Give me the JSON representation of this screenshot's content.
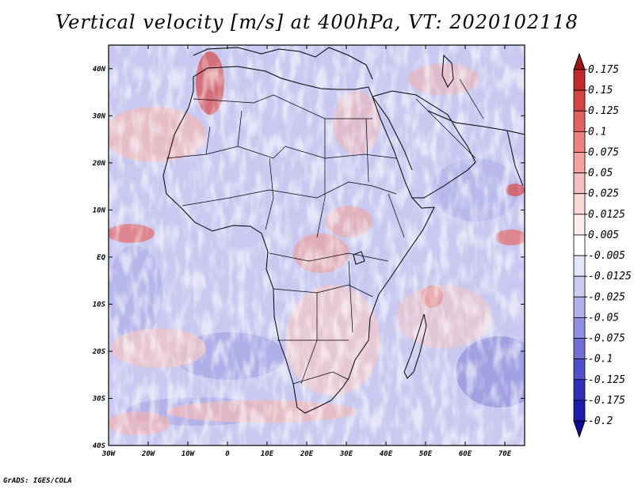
{
  "title": "Vertical velocity [m/s] at 400hPa, VT: 2020102118",
  "footer": "GrADS: IGES/COLA",
  "map": {
    "lon_range": [
      -30,
      75
    ],
    "lat_range": [
      -40,
      45
    ],
    "x_ticks": [
      {
        "value": -30,
        "label": "30W"
      },
      {
        "value": -20,
        "label": "20W"
      },
      {
        "value": -10,
        "label": "10W"
      },
      {
        "value": 0,
        "label": "0"
      },
      {
        "value": 10,
        "label": "10E"
      },
      {
        "value": 20,
        "label": "20E"
      },
      {
        "value": 30,
        "label": "30E"
      },
      {
        "value": 40,
        "label": "40E"
      },
      {
        "value": 50,
        "label": "50E"
      },
      {
        "value": 60,
        "label": "60E"
      },
      {
        "value": 70,
        "label": "70E"
      }
    ],
    "y_ticks": [
      {
        "value": 40,
        "label": "40N"
      },
      {
        "value": 30,
        "label": "30N"
      },
      {
        "value": 20,
        "label": "20N"
      },
      {
        "value": 10,
        "label": "10N"
      },
      {
        "value": 0,
        "label": "EQ"
      },
      {
        "value": -10,
        "label": "10S"
      },
      {
        "value": -20,
        "label": "20S"
      },
      {
        "value": -30,
        "label": "30S"
      },
      {
        "value": -40,
        "label": "40S"
      }
    ],
    "colors": {
      "background": "#cccdf2",
      "land_line": "#000000",
      "frame": "#000000"
    }
  },
  "colorbar": {
    "labels": [
      "0.175",
      "0.15",
      "0.125",
      "0.1",
      "0.075",
      "0.05",
      "0.025",
      "0.0125",
      "0.005",
      "-0.005",
      "-0.0125",
      "-0.025",
      "-0.05",
      "-0.075",
      "-0.1",
      "-0.125",
      "-0.175",
      "-0.2"
    ],
    "colors": [
      "#a01414",
      "#c02a2a",
      "#d64444",
      "#e26060",
      "#ea8080",
      "#f2a0a0",
      "#f6bebe",
      "#fad8d8",
      "#fdecec",
      "#ffffff",
      "#e6e6fa",
      "#ccccf2",
      "#b0b0ea",
      "#9090e0",
      "#7070d6",
      "#5050cc",
      "#3030bc",
      "#1c1cae",
      "#0c0c96"
    ]
  }
}
